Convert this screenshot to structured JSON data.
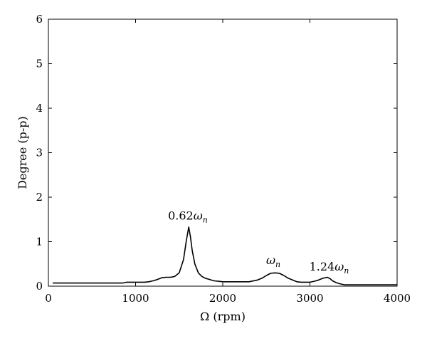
{
  "chart_data": {
    "type": "line",
    "title": "",
    "xlabel": "Ω (rpm)",
    "ylabel": "Degree (p-p)",
    "xlim": [
      0,
      4000
    ],
    "ylim": [
      0,
      6
    ],
    "xticks": [
      0,
      1000,
      2000,
      3000,
      4000
    ],
    "yticks": [
      0,
      1,
      2,
      3,
      4,
      5,
      6
    ],
    "grid": false,
    "legend": "none",
    "series": [
      {
        "color": "#000000",
        "x": [
          50,
          200,
          400,
          600,
          850,
          900,
          1000,
          1100,
          1150,
          1200,
          1250,
          1300,
          1350,
          1400,
          1450,
          1500,
          1550,
          1580,
          1610,
          1630,
          1650,
          1680,
          1720,
          1760,
          1800,
          1850,
          1900,
          1950,
          2000,
          2100,
          2200,
          2300,
          2400,
          2450,
          2500,
          2550,
          2600,
          2650,
          2700,
          2750,
          2800,
          2850,
          2900,
          2950,
          3000,
          3050,
          3100,
          3150,
          3200,
          3230,
          3260,
          3300,
          3350,
          3400,
          3450,
          3500,
          3700,
          4000
        ],
        "y": [
          0.07,
          0.07,
          0.07,
          0.07,
          0.07,
          0.09,
          0.09,
          0.09,
          0.1,
          0.12,
          0.15,
          0.19,
          0.2,
          0.2,
          0.22,
          0.3,
          0.6,
          1.0,
          1.33,
          1.1,
          0.8,
          0.5,
          0.3,
          0.22,
          0.18,
          0.15,
          0.12,
          0.11,
          0.1,
          0.1,
          0.1,
          0.1,
          0.14,
          0.18,
          0.24,
          0.29,
          0.3,
          0.29,
          0.24,
          0.18,
          0.14,
          0.1,
          0.09,
          0.09,
          0.09,
          0.11,
          0.14,
          0.18,
          0.2,
          0.17,
          0.12,
          0.08,
          0.05,
          0.03,
          0.03,
          0.03,
          0.03,
          0.03
        ]
      }
    ],
    "annotations": [
      {
        "text": "0.62",
        "symbol": "ω",
        "sub": "n",
        "x": 1600,
        "y": 1.5
      },
      {
        "text": "",
        "symbol": "ω",
        "sub": "n",
        "x": 2580,
        "y": 0.5
      },
      {
        "text": "1.24",
        "symbol": "ω",
        "sub": "n",
        "x": 3220,
        "y": 0.35
      }
    ]
  }
}
